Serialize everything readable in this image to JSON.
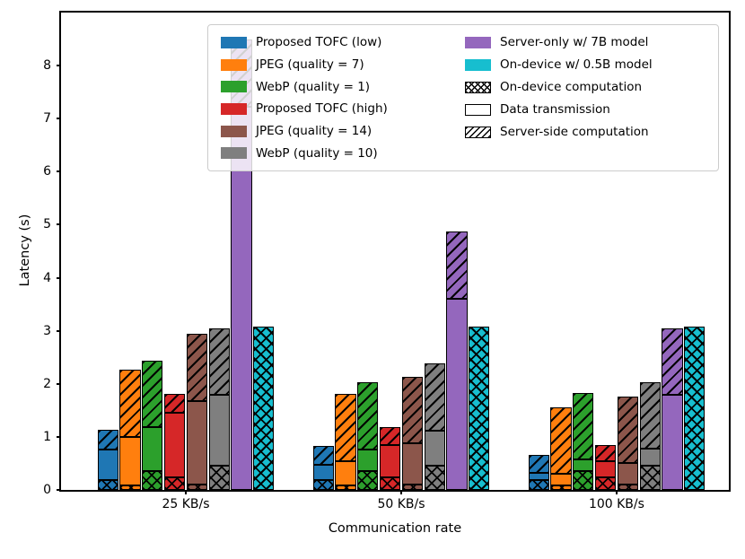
{
  "chart_data": {
    "type": "bar",
    "stacked": true,
    "title": "",
    "xlabel": "Communication rate",
    "ylabel": "Latency (s)",
    "categories": [
      "25 KB/s",
      "50 KB/s",
      "100 KB/s"
    ],
    "ylim": [
      0,
      9.0
    ],
    "yticks": [
      "0",
      "1",
      "2",
      "3",
      "4",
      "5",
      "6",
      "7",
      "8"
    ],
    "grid": false,
    "legend_position": "upper center, 2 columns",
    "stack_order": [
      "on_device",
      "transmission",
      "server"
    ],
    "stack_hatches": {
      "on_device": "xx",
      "transmission": "none",
      "server": "//"
    },
    "series": [
      {
        "name": "Proposed TOFC (low)",
        "color": "#1f77b4",
        "segments": {
          "on_device": [
            0.19,
            0.19,
            0.19
          ],
          "transmission": [
            0.57,
            0.29,
            0.13
          ],
          "server": [
            0.38,
            0.35,
            0.34
          ]
        },
        "totals": [
          1.14,
          0.83,
          0.66
        ]
      },
      {
        "name": "JPEG (quality = 7)",
        "color": "#ff7f0e",
        "segments": {
          "on_device": [
            0.08,
            0.08,
            0.08
          ],
          "transmission": [
            0.92,
            0.47,
            0.23
          ],
          "server": [
            1.27,
            1.26,
            1.25
          ]
        },
        "totals": [
          2.27,
          1.81,
          1.56
        ]
      },
      {
        "name": "WebP (quality = 1)",
        "color": "#2ca02c",
        "segments": {
          "on_device": [
            0.36,
            0.36,
            0.36
          ],
          "transmission": [
            0.82,
            0.41,
            0.21
          ],
          "server": [
            1.26,
            1.26,
            1.26
          ]
        },
        "totals": [
          2.44,
          2.03,
          1.83
        ]
      },
      {
        "name": "Proposed TOFC (high)",
        "color": "#d62728",
        "segments": {
          "on_device": [
            0.24,
            0.24,
            0.24
          ],
          "transmission": [
            1.22,
            0.6,
            0.3
          ],
          "server": [
            0.35,
            0.35,
            0.31
          ]
        },
        "totals": [
          1.81,
          1.19,
          0.85
        ]
      },
      {
        "name": "JPEG (quality = 14)",
        "color": "#8c564b",
        "segments": {
          "on_device": [
            0.1,
            0.1,
            0.1
          ],
          "transmission": [
            1.58,
            0.78,
            0.4
          ],
          "server": [
            1.27,
            1.26,
            1.26
          ]
        },
        "totals": [
          2.95,
          2.14,
          1.76
        ]
      },
      {
        "name": "WebP (quality = 10)",
        "color": "#7f7f7f",
        "segments": {
          "on_device": [
            0.45,
            0.45,
            0.45
          ],
          "transmission": [
            1.34,
            0.67,
            0.33
          ],
          "server": [
            1.26,
            1.26,
            1.25
          ]
        },
        "totals": [
          3.05,
          2.38,
          2.03
        ]
      },
      {
        "name": "Server-only w/ 7B model",
        "color": "#9467bd",
        "segments": {
          "on_device": [
            0,
            0,
            0
          ],
          "transmission": [
            7.22,
            3.61,
            1.8
          ],
          "server": [
            1.27,
            1.27,
            1.25
          ]
        },
        "totals": [
          8.49,
          4.88,
          3.05
        ]
      },
      {
        "name": "On-device w/ 0.5B model",
        "color": "#17becf",
        "segments": {
          "on_device": [
            3.08,
            3.08,
            3.08
          ],
          "transmission": [
            0,
            0,
            0
          ],
          "server": [
            0,
            0,
            0
          ]
        },
        "totals": [
          3.08,
          3.08,
          3.08
        ]
      }
    ],
    "hatch_legend": [
      {
        "label": "On-device computation",
        "hatch": "xx"
      },
      {
        "label": "Data transmission",
        "hatch": "none"
      },
      {
        "label": "Server-side computation",
        "hatch": "//"
      }
    ]
  }
}
